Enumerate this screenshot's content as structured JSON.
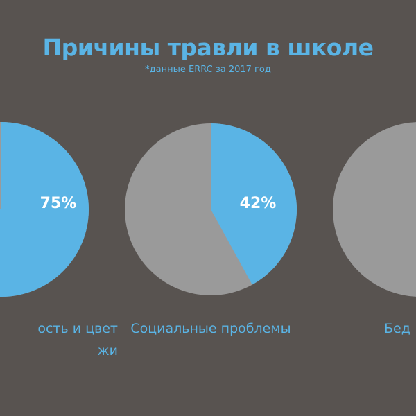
{
  "colors": {
    "background": "#585350",
    "accent": "#5ab4e5",
    "remainder": "#9a9a9a",
    "value_text": "#ffffff"
  },
  "chart_data": {
    "type": "pie",
    "title": "Причины травли в школе",
    "subtitle": "*данные ERRC за 2017 год",
    "pies": [
      {
        "label_lines": [
          "ость и цвет",
          "жи"
        ],
        "value": 75,
        "value_label": "75%"
      },
      {
        "label_lines": [
          "Социальные проблемы"
        ],
        "value": 42,
        "value_label": "42%"
      },
      {
        "label_lines": [
          "Бед"
        ],
        "value": null,
        "value_label": ""
      }
    ]
  }
}
